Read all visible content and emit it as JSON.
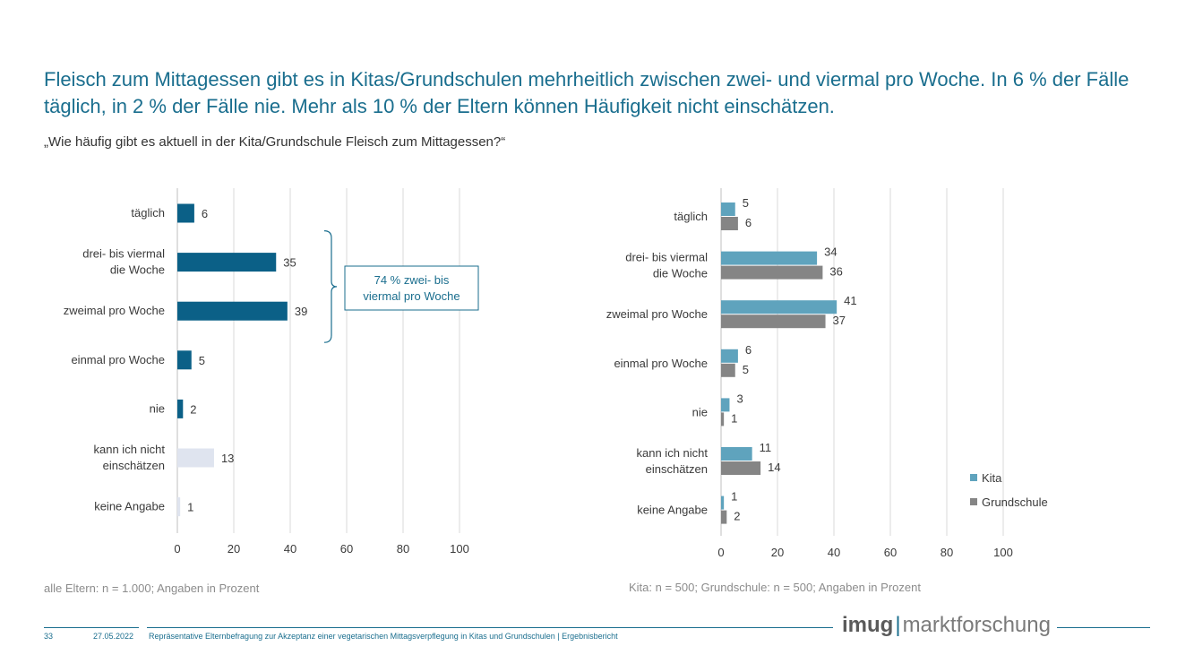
{
  "header": {
    "title": "Fleisch zum Mittagessen gibt es in Kitas/Grundschulen mehrheitlich zwischen zwei- und viermal pro Woche. In 6 % der Fälle täglich, in 2 % der Fälle nie. Mehr als 10 % der Eltern können Häufigkeit nicht einschätzen.",
    "question": "„Wie häufig gibt es aktuell in der Kita/Grundschule Fleisch zum Mittagessen?“"
  },
  "colors": {
    "primary": "#0b6087",
    "light": "#dfe4ef",
    "kita": "#5fa3bd",
    "grundschule": "#858585",
    "grid": "#d9d9d9",
    "accent": "#1a6e8e"
  },
  "chart_data": [
    {
      "type": "bar",
      "orientation": "horizontal",
      "categories": [
        "täglich",
        "drei- bis viermal die Woche",
        "zweimal pro Woche",
        "einmal pro Woche",
        "nie",
        "kann ich nicht einschätzen",
        "keine Angabe"
      ],
      "values": [
        6,
        35,
        39,
        5,
        2,
        13,
        1
      ],
      "xlim": [
        0,
        100
      ],
      "xticks": [
        0,
        20,
        40,
        60,
        80,
        100
      ],
      "grid": true,
      "annotation": "74 % zwei- bis viermal pro Woche",
      "note": "alle Eltern: n = 1.000; Angaben in Prozent"
    },
    {
      "type": "bar",
      "orientation": "horizontal",
      "categories": [
        "täglich",
        "drei- bis viermal die Woche",
        "zweimal pro Woche",
        "einmal pro Woche",
        "nie",
        "kann ich nicht einschätzen",
        "keine Angabe"
      ],
      "series": [
        {
          "name": "Kita",
          "values": [
            5,
            34,
            41,
            6,
            3,
            11,
            1
          ]
        },
        {
          "name": "Grundschule",
          "values": [
            6,
            36,
            37,
            5,
            1,
            14,
            2
          ]
        }
      ],
      "xlim": [
        0,
        100
      ],
      "xticks": [
        0,
        20,
        40,
        60,
        80,
        100
      ],
      "grid": true,
      "legend": "right",
      "note": "Kita: n = 500; Grundschule: n = 500; Angaben in Prozent"
    }
  ],
  "footer": {
    "page": "33",
    "date": "27.05.2022",
    "text": "Repräsentative Elternbefragung zur Akzeptanz einer vegetarischen Mittagsverpflegung in Kitas und Grundschulen | Ergebnisbericht",
    "logo_bold": "imug",
    "logo_sep": "|",
    "logo_rest": "marktforschung"
  }
}
